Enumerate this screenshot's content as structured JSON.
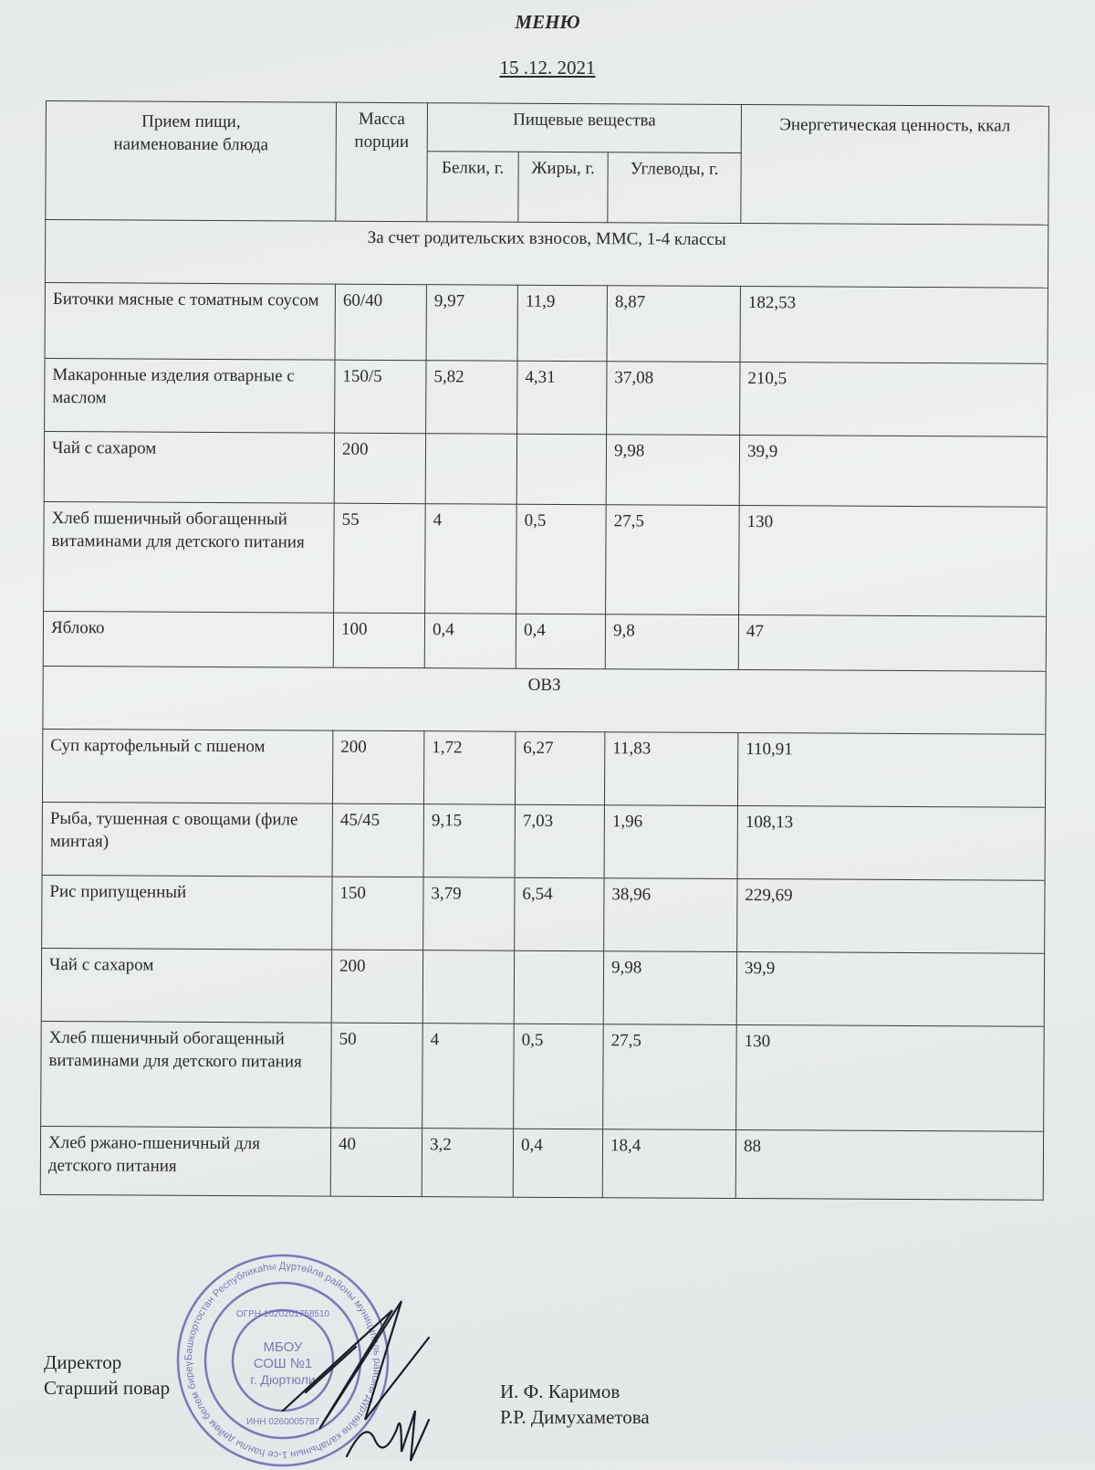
{
  "title": "МЕНЮ",
  "date": "15 .12. 2021",
  "headers": {
    "dish": "Прием пищи, наименование блюда",
    "mass": "Масса порции",
    "nutrients": "Пищевые вещества",
    "protein": "Белки, г.",
    "fat": "Жиры, г.",
    "carbs": "Углеводы, г.",
    "energy": "Энергетическая ценность, ккал"
  },
  "sections": [
    {
      "title": "За счет родительских взносов, ММС, 1-4 классы",
      "rows": [
        [
          "Биточки мясные с томатным соусом",
          "60/40",
          "9,97",
          "11,9",
          "8,87",
          "182,53"
        ],
        [
          "Макаронные изделия отварные с маслом",
          "150/5",
          "5,82",
          "4,31",
          "37,08",
          "210,5"
        ],
        [
          "Чай с сахаром",
          "200",
          "",
          "",
          "9,98",
          "39,9"
        ],
        [
          "Хлеб пшеничный обогащенный витаминами для детского питания",
          "55",
          "4",
          "0,5",
          "27,5",
          "130"
        ],
        [
          "Яблоко",
          "100",
          "0,4",
          "0,4",
          "9,8",
          "47"
        ]
      ]
    },
    {
      "title": "ОВЗ",
      "rows": [
        [
          "Суп картофельный с пшеном",
          "200",
          "1,72",
          "6,27",
          "11,83",
          "110,91"
        ],
        [
          "Рыба, тушенная с овощами (филе минтая)",
          "45/45",
          "9,15",
          "7,03",
          "1,96",
          "108,13"
        ],
        [
          "Рис припущенный",
          "150",
          "3,79",
          "6,54",
          "38,96",
          "229,69"
        ],
        [
          "Чай с сахаром",
          "200",
          "",
          "",
          "9,98",
          "39,9"
        ],
        [
          "Хлеб пшеничный обогащенный витаминами для детского питания",
          "50",
          "4",
          "0,5",
          "27,5",
          "130"
        ],
        [
          "Хлеб ржано-пшеничный для детского питания",
          "40",
          "3,2",
          "0,4",
          "18,4",
          "88"
        ]
      ]
    }
  ],
  "signatures": {
    "director_label": "Директор",
    "director_name": "И. Ф. Каримов",
    "chef_label": "Старший повар",
    "chef_name": "Р.Р. Димухаметова"
  },
  "stamp": {
    "outer": "Башкортостан Республикаhы Дүртөйлө районы муниципаль районы Дүртөйлө калаhынын 1-се hанлы дөйөм белем биреү мәктәбе муниципаль бюджет дөйөм белем биреү учреждениеhы",
    "ogrn": "ОГРН 1020201758510",
    "center1": "МБОУ",
    "center2": "СОШ №1",
    "center3": "г. Дюртюли",
    "inn": "ИНН 0260005787",
    "color": "#6a64b0"
  }
}
